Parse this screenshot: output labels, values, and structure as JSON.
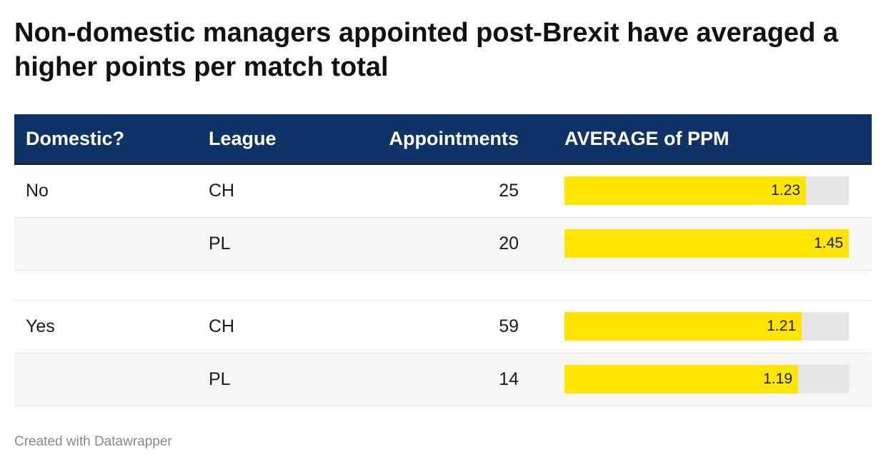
{
  "title": "Non-domestic managers appointed post-Brexit have averaged a higher points per match total",
  "footer": "Created with Datawrapper",
  "colors": {
    "header_bg": "#0f3366",
    "bar": "#ffe500",
    "bar_track": "#e6e6e6"
  },
  "chart_data": {
    "type": "table",
    "title": "Non-domestic managers appointed post-Brexit have averaged a higher points per match total",
    "columns": [
      "Domestic?",
      "League",
      "Appointments",
      "AVERAGE of PPM"
    ],
    "ppm_scale_max": 1.45,
    "groups": [
      {
        "domestic": "No",
        "rows": [
          {
            "league": "CH",
            "appointments": "25",
            "ppm": "1.23"
          },
          {
            "league": "PL",
            "appointments": "20",
            "ppm": "1.45"
          }
        ]
      },
      {
        "domestic": "Yes",
        "rows": [
          {
            "league": "CH",
            "appointments": "59",
            "ppm": "1.21"
          },
          {
            "league": "PL",
            "appointments": "14",
            "ppm": "1.19"
          }
        ]
      }
    ]
  }
}
